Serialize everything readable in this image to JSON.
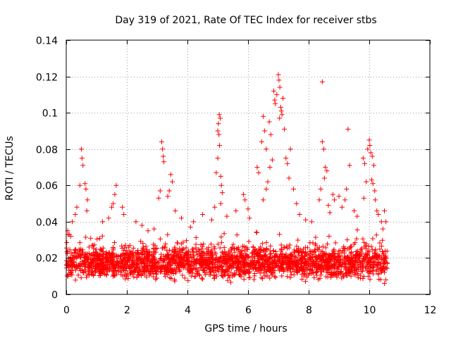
{
  "chart_data": {
    "type": "scatter",
    "title": "Day 319 of 2021, Rate Of TEC Index for receiver stbs",
    "xlabel": "GPS time / hours",
    "ylabel": "ROTI / TECUs",
    "xlim": [
      0,
      12
    ],
    "ylim": [
      0,
      0.14
    ],
    "xticks": [
      0,
      2,
      4,
      6,
      8,
      10,
      12
    ],
    "xtick_labels": [
      "0",
      "2",
      "4",
      "6",
      "8",
      "10",
      "12"
    ],
    "yticks": [
      0,
      0.02,
      0.04,
      0.06,
      0.08,
      0.1,
      0.12,
      0.14
    ],
    "ytick_labels": [
      "0",
      "0.02",
      "0.04",
      "0.06",
      "0.08",
      "0.1",
      "0.12",
      "0.14"
    ],
    "grid": true,
    "marker": "+",
    "color": "#ff0000",
    "background_band": {
      "x_range": [
        0,
        10.6
      ],
      "y_range": [
        0.005,
        0.03
      ],
      "approx_points": 2400
    },
    "series": [
      {
        "name": "ROTI",
        "points": [
          [
            0.5,
            0.08
          ],
          [
            0.52,
            0.075
          ],
          [
            0.55,
            0.071
          ],
          [
            0.45,
            0.06
          ],
          [
            0.62,
            0.061
          ],
          [
            0.65,
            0.058
          ],
          [
            0.7,
            0.052
          ],
          [
            0.68,
            0.046
          ],
          [
            0.35,
            0.048
          ],
          [
            0.3,
            0.044
          ],
          [
            0.2,
            0.04
          ],
          [
            0.1,
            0.033
          ],
          [
            1.65,
            0.06
          ],
          [
            1.6,
            0.055
          ],
          [
            1.55,
            0.05
          ],
          [
            1.5,
            0.048
          ],
          [
            1.85,
            0.048
          ],
          [
            1.9,
            0.044
          ],
          [
            1.2,
            0.04
          ],
          [
            1.4,
            0.042
          ],
          [
            2.3,
            0.04
          ],
          [
            2.5,
            0.038
          ],
          [
            2.7,
            0.035
          ],
          [
            3.15,
            0.084
          ],
          [
            3.18,
            0.08
          ],
          [
            3.2,
            0.076
          ],
          [
            3.22,
            0.073
          ],
          [
            3.1,
            0.057
          ],
          [
            3.05,
            0.053
          ],
          [
            3.45,
            0.066
          ],
          [
            3.5,
            0.062
          ],
          [
            3.4,
            0.057
          ],
          [
            3.35,
            0.054
          ],
          [
            3.6,
            0.046
          ],
          [
            3.8,
            0.042
          ],
          [
            4.2,
            0.04
          ],
          [
            4.5,
            0.044
          ],
          [
            4.8,
            0.041
          ],
          [
            5.05,
            0.099
          ],
          [
            5.08,
            0.097
          ],
          [
            5.02,
            0.094
          ],
          [
            5.0,
            0.09
          ],
          [
            5.04,
            0.088
          ],
          [
            5.06,
            0.082
          ],
          [
            5.0,
            0.075
          ],
          [
            4.95,
            0.067
          ],
          [
            5.1,
            0.065
          ],
          [
            5.12,
            0.06
          ],
          [
            5.15,
            0.056
          ],
          [
            5.1,
            0.05
          ],
          [
            4.9,
            0.048
          ],
          [
            5.3,
            0.043
          ],
          [
            5.6,
            0.046
          ],
          [
            5.85,
            0.055
          ],
          [
            5.9,
            0.052
          ],
          [
            6.0,
            0.047
          ],
          [
            6.05,
            0.042
          ],
          [
            6.3,
            0.07
          ],
          [
            6.35,
            0.067
          ],
          [
            6.45,
            0.084
          ],
          [
            6.5,
            0.098
          ],
          [
            6.55,
            0.09
          ],
          [
            6.6,
            0.08
          ],
          [
            6.7,
            0.095
          ],
          [
            6.75,
            0.088
          ],
          [
            6.8,
            0.074
          ],
          [
            6.72,
            0.07
          ],
          [
            6.65,
            0.062
          ],
          [
            6.6,
            0.058
          ],
          [
            6.5,
            0.052
          ],
          [
            6.85,
            0.112
          ],
          [
            6.88,
            0.107
          ],
          [
            6.9,
            0.105
          ],
          [
            6.95,
            0.11
          ],
          [
            7.0,
            0.121
          ],
          [
            7.02,
            0.118
          ],
          [
            7.05,
            0.114
          ],
          [
            7.08,
            0.103
          ],
          [
            7.1,
            0.101
          ],
          [
            7.12,
            0.099
          ],
          [
            7.04,
            0.097
          ],
          [
            7.15,
            0.108
          ],
          [
            7.2,
            0.091
          ],
          [
            7.25,
            0.075
          ],
          [
            7.3,
            0.072
          ],
          [
            7.35,
            0.064
          ],
          [
            7.4,
            0.08
          ],
          [
            7.5,
            0.058
          ],
          [
            7.6,
            0.05
          ],
          [
            7.7,
            0.044
          ],
          [
            7.9,
            0.041
          ],
          [
            8.1,
            0.04
          ],
          [
            8.45,
            0.117
          ],
          [
            8.45,
            0.084
          ],
          [
            8.5,
            0.08
          ],
          [
            8.55,
            0.07
          ],
          [
            8.6,
            0.068
          ],
          [
            8.52,
            0.064
          ],
          [
            8.4,
            0.058
          ],
          [
            8.35,
            0.052
          ],
          [
            8.65,
            0.049
          ],
          [
            8.7,
            0.045
          ],
          [
            8.8,
            0.055
          ],
          [
            8.85,
            0.052
          ],
          [
            9.0,
            0.054
          ],
          [
            9.1,
            0.048
          ],
          [
            9.3,
            0.091
          ],
          [
            9.35,
            0.071
          ],
          [
            9.25,
            0.058
          ],
          [
            9.2,
            0.052
          ],
          [
            9.5,
            0.046
          ],
          [
            9.6,
            0.043
          ],
          [
            9.8,
            0.075
          ],
          [
            9.85,
            0.072
          ],
          [
            9.9,
            0.062
          ],
          [
            9.82,
            0.053
          ],
          [
            9.95,
            0.08
          ],
          [
            10.0,
            0.085
          ],
          [
            10.02,
            0.082
          ],
          [
            10.05,
            0.078
          ],
          [
            10.1,
            0.076
          ],
          [
            10.15,
            0.071
          ],
          [
            10.08,
            0.063
          ],
          [
            10.12,
            0.061
          ],
          [
            10.18,
            0.057
          ],
          [
            10.2,
            0.052
          ],
          [
            10.25,
            0.046
          ],
          [
            10.3,
            0.044
          ],
          [
            10.4,
            0.04
          ],
          [
            10.5,
            0.046
          ],
          [
            10.55,
            0.04
          ],
          [
            10.45,
            0.036
          ],
          [
            10.55,
            0.008
          ],
          [
            10.5,
            0.006
          ],
          [
            0.05,
            0.035
          ],
          [
            0.15,
            0.032
          ],
          [
            2.9,
            0.036
          ],
          [
            4.1,
            0.037
          ]
        ]
      }
    ]
  }
}
